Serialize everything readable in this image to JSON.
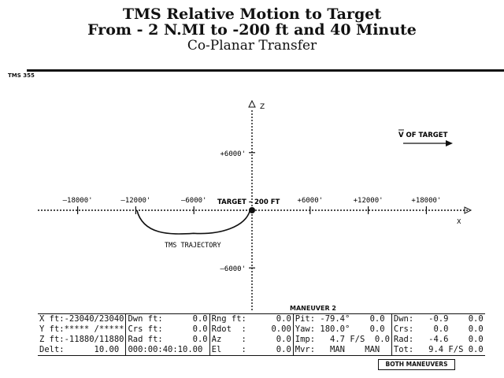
{
  "header": {
    "line1": "TMS Relative Motion to Target",
    "line2": "From - 2 N.MI to -200 ft and 40 Minute",
    "line3": "Co-Planar Transfer",
    "figure_id": "TMS 355"
  },
  "plot": {
    "z_axis_label": "Z",
    "x_axis_label": "X",
    "velocity_label": "V OF TARGET",
    "target_label": "TARGET – 200 FT",
    "trajectory_label": "TMS TRAJECTORY",
    "x_ticks": [
      {
        "value": -18000,
        "label": "–18000'"
      },
      {
        "value": -12000,
        "label": "–12000'"
      },
      {
        "value": -6000,
        "label": "–6000'"
      },
      {
        "value": 6000,
        "label": "+6000'"
      },
      {
        "value": 12000,
        "label": "+12000'"
      },
      {
        "value": 18000,
        "label": "+18000'"
      }
    ],
    "z_ticks": [
      {
        "value": 6000,
        "label": "+6000'"
      },
      {
        "value": -6000,
        "label": "–6000'"
      }
    ],
    "trajectory": {
      "start_x": -11880,
      "end_x": -200,
      "min_z": -2400
    }
  },
  "maneuver": {
    "title": "MANEUVER 2",
    "both_label": "BOTH MANEUVERS"
  },
  "readout": {
    "rows": [
      [
        "X ft:-23040/23040",
        "Dwn ft:      0.0",
        "Rng ft:      0.0",
        "Pit: -79.4°    0.0",
        "Dwn:   -0.9    0.0"
      ],
      [
        "Y ft:***** /*****",
        "Crs ft:      0.0",
        "Rdot  :     0.00",
        "Yaw: 180.0°    0.0",
        "Crs:    0.0    0.0"
      ],
      [
        "Z ft:-11880/11880",
        "Rad ft:      0.0",
        "Az    :      0.0",
        "Imp:   4.7 F/S  0.0",
        "Rad:   -4.6    0.0"
      ],
      [
        "Delt:      10.00",
        "000:00:40:10.00",
        "El    :      0.0",
        "Mvr:   MAN    MAN",
        "Tot:   9.4 F/S 0.0"
      ]
    ]
  }
}
